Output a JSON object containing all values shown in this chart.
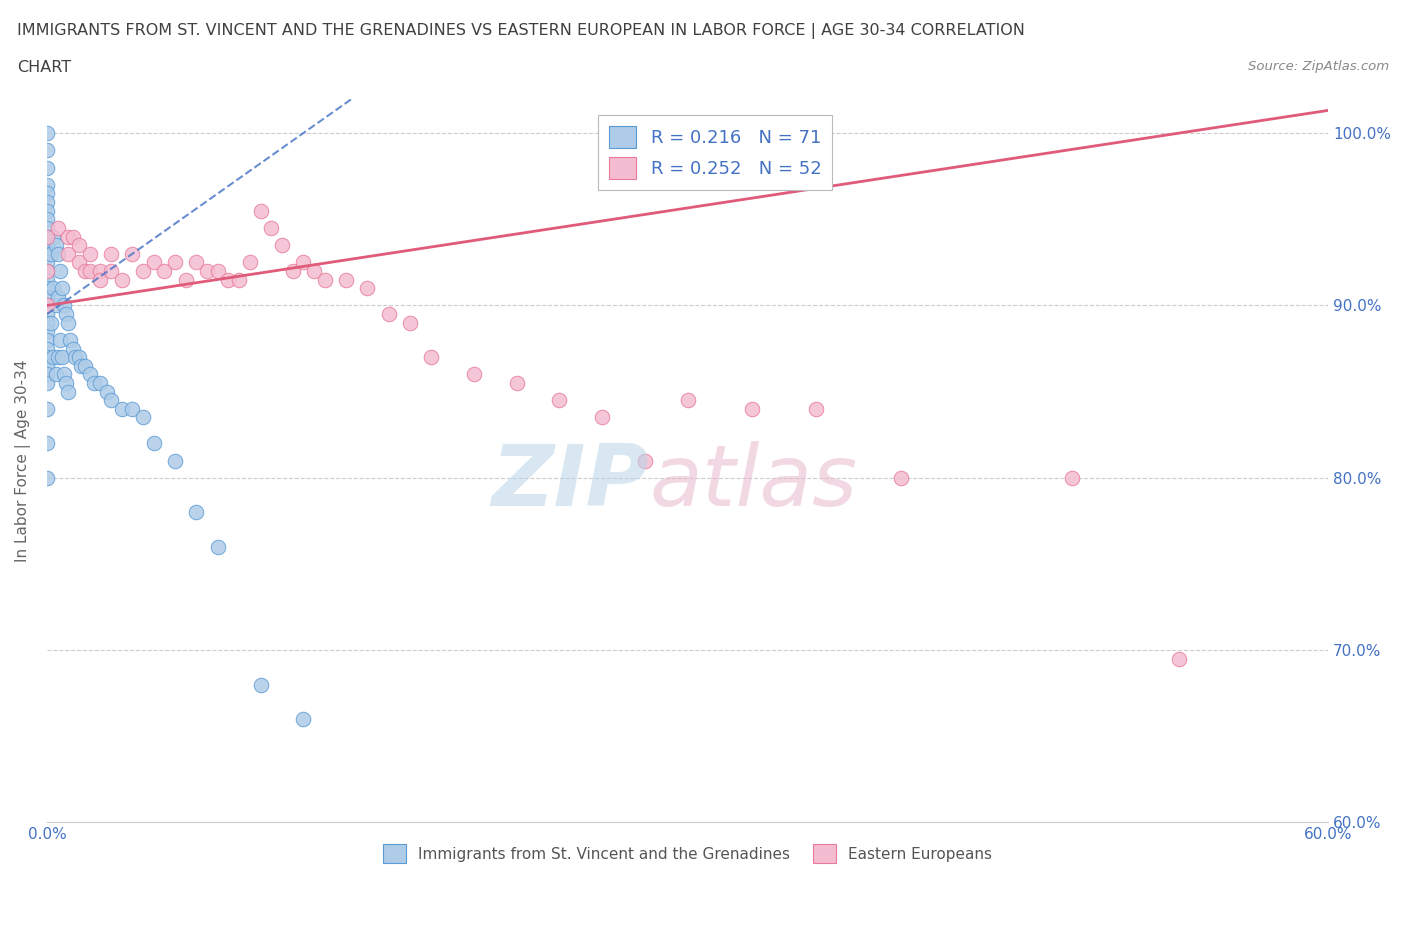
{
  "title_line1": "IMMIGRANTS FROM ST. VINCENT AND THE GRENADINES VS EASTERN EUROPEAN IN LABOR FORCE | AGE 30-34 CORRELATION",
  "title_line2": "CHART",
  "source_text": "Source: ZipAtlas.com",
  "ylabel": "In Labor Force | Age 30-34",
  "xlim": [
    0.0,
    0.6
  ],
  "ylim": [
    0.6,
    1.02
  ],
  "xtick_positions": [
    0.0,
    0.1,
    0.2,
    0.3,
    0.4,
    0.5,
    0.6
  ],
  "xticklabels": [
    "0.0%",
    "",
    "",
    "",
    "",
    "",
    "60.0%"
  ],
  "ytick_positions": [
    0.6,
    0.7,
    0.8,
    0.9,
    1.0
  ],
  "ytick_labels_right": [
    "60.0%",
    "70.0%",
    "80.0%",
    "90.0%",
    "100.0%"
  ],
  "blue_R": 0.216,
  "blue_N": 71,
  "pink_R": 0.252,
  "pink_N": 52,
  "blue_color": "#aecce8",
  "blue_edge": "#5b9bd5",
  "pink_color": "#f4bcd0",
  "pink_edge": "#e87a9a",
  "blue_line_color": "#4472c4",
  "pink_line_color": "#e05a7a",
  "background_color": "#ffffff",
  "grid_color": "#cccccc",
  "title_color": "#404040",
  "tick_label_color": "#4472c4",
  "blue_scatter_x": [
    0.0,
    0.0,
    0.0,
    0.0,
    0.0,
    0.0,
    0.0,
    0.0,
    0.0,
    0.0,
    0.0,
    0.0,
    0.0,
    0.0,
    0.0,
    0.0,
    0.0,
    0.0,
    0.0,
    0.0,
    0.0,
    0.0,
    0.0,
    0.0,
    0.0,
    0.0,
    0.0,
    0.0,
    0.0,
    0.0,
    0.002,
    0.002,
    0.003,
    0.003,
    0.003,
    0.004,
    0.004,
    0.004,
    0.005,
    0.005,
    0.005,
    0.006,
    0.006,
    0.007,
    0.007,
    0.008,
    0.008,
    0.009,
    0.009,
    0.01,
    0.01,
    0.011,
    0.012,
    0.013,
    0.015,
    0.016,
    0.018,
    0.02,
    0.022,
    0.025,
    0.028,
    0.03,
    0.035,
    0.04,
    0.045,
    0.05,
    0.06,
    0.07,
    0.08,
    0.1,
    0.12
  ],
  "blue_scatter_y": [
    1.0,
    0.99,
    0.98,
    0.97,
    0.965,
    0.96,
    0.955,
    0.95,
    0.945,
    0.94,
    0.935,
    0.93,
    0.925,
    0.92,
    0.915,
    0.91,
    0.905,
    0.9,
    0.895,
    0.89,
    0.885,
    0.88,
    0.875,
    0.87,
    0.865,
    0.86,
    0.855,
    0.84,
    0.82,
    0.8,
    0.93,
    0.89,
    0.94,
    0.91,
    0.87,
    0.935,
    0.9,
    0.86,
    0.93,
    0.905,
    0.87,
    0.92,
    0.88,
    0.91,
    0.87,
    0.9,
    0.86,
    0.895,
    0.855,
    0.89,
    0.85,
    0.88,
    0.875,
    0.87,
    0.87,
    0.865,
    0.865,
    0.86,
    0.855,
    0.855,
    0.85,
    0.845,
    0.84,
    0.84,
    0.835,
    0.82,
    0.81,
    0.78,
    0.76,
    0.68,
    0.66
  ],
  "pink_scatter_x": [
    0.0,
    0.0,
    0.0,
    0.005,
    0.01,
    0.01,
    0.012,
    0.015,
    0.015,
    0.018,
    0.02,
    0.02,
    0.025,
    0.025,
    0.03,
    0.03,
    0.035,
    0.04,
    0.045,
    0.05,
    0.055,
    0.06,
    0.065,
    0.07,
    0.075,
    0.08,
    0.085,
    0.09,
    0.095,
    0.1,
    0.105,
    0.11,
    0.115,
    0.12,
    0.125,
    0.13,
    0.14,
    0.15,
    0.16,
    0.17,
    0.18,
    0.2,
    0.22,
    0.24,
    0.26,
    0.28,
    0.3,
    0.33,
    0.36,
    0.4,
    0.48,
    0.53
  ],
  "pink_scatter_y": [
    0.94,
    0.92,
    0.9,
    0.945,
    0.94,
    0.93,
    0.94,
    0.935,
    0.925,
    0.92,
    0.93,
    0.92,
    0.92,
    0.915,
    0.93,
    0.92,
    0.915,
    0.93,
    0.92,
    0.925,
    0.92,
    0.925,
    0.915,
    0.925,
    0.92,
    0.92,
    0.915,
    0.915,
    0.925,
    0.955,
    0.945,
    0.935,
    0.92,
    0.925,
    0.92,
    0.915,
    0.915,
    0.91,
    0.895,
    0.89,
    0.87,
    0.86,
    0.855,
    0.845,
    0.835,
    0.81,
    0.845,
    0.84,
    0.84,
    0.8,
    0.8,
    0.695
  ],
  "blue_line_x0": 0.0,
  "blue_line_y0": 0.895,
  "blue_line_x1": 0.12,
  "blue_line_y1": 1.0,
  "pink_line_x0": 0.0,
  "pink_line_y0": 0.9,
  "pink_line_x1": 0.53,
  "pink_line_y1": 1.0
}
